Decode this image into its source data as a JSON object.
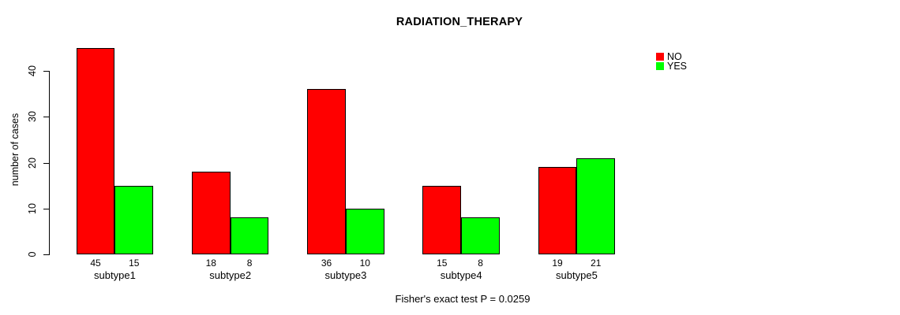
{
  "title": "RADIATION_THERAPY",
  "annotation": "Fisher's exact test P = 0.0259",
  "ylabel": "number of cases",
  "chart_data": {
    "type": "bar",
    "title": "RADIATION_THERAPY",
    "xlabel": "",
    "ylabel": "number of cases",
    "categories": [
      "subtype1",
      "subtype2",
      "subtype3",
      "subtype4",
      "subtype5"
    ],
    "series": [
      {
        "name": "NO",
        "color": "#ff0000",
        "values": [
          45,
          18,
          36,
          15,
          19
        ]
      },
      {
        "name": "YES",
        "color": "#00ff00",
        "values": [
          15,
          8,
          10,
          8,
          21
        ]
      }
    ],
    "yticks": [
      0,
      10,
      20,
      30,
      40
    ],
    "ylim": [
      0,
      45
    ],
    "bar_value_labels": true,
    "grid": false,
    "legend_position": "top-right",
    "annotation": "Fisher's exact test P = 0.0259"
  }
}
